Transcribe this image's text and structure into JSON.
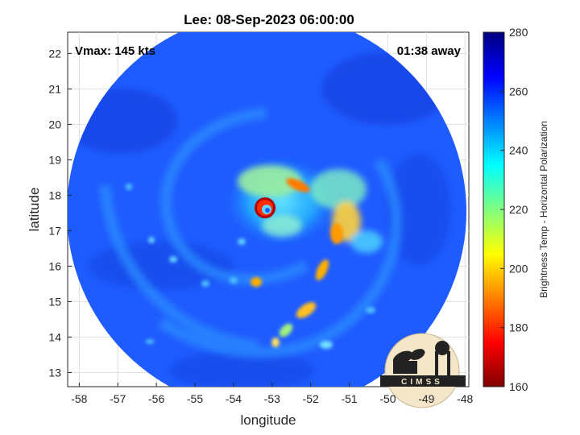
{
  "title": "Lee: 08-Sep-2023 06:00:00",
  "vmax_text": "Vmax: 145 kts",
  "time_offset_text": "01:38 away",
  "xlabel": "longitude",
  "ylabel": "latitude",
  "colorbar_label": "Brightness Temp - Horizontal Polarization",
  "logo_text": "CIMSS",
  "x_ticks": [
    "-58",
    "-57",
    "-56",
    "-55",
    "-54",
    "-53",
    "-52",
    "-51",
    "-50",
    "-49",
    "-48"
  ],
  "y_ticks": [
    "22",
    "21",
    "20",
    "19",
    "18",
    "17",
    "16",
    "15",
    "14",
    "13"
  ],
  "colorbar_ticks": [
    "280",
    "260",
    "240",
    "220",
    "200",
    "180",
    "160"
  ],
  "chart_data": {
    "type": "heatmap",
    "title": "Lee: 08-Sep-2023 06:00:00",
    "xlabel": "longitude",
    "ylabel": "latitude",
    "xlim": [
      -58.3,
      -47.9
    ],
    "ylim": [
      12.6,
      22.6
    ],
    "clim": [
      160,
      280
    ],
    "colormap": "jet",
    "colorbar_label": "Brightness Temp - Horizontal Polarization",
    "background_value_approx": 258,
    "eye_center": {
      "lon": -53.1,
      "lat": 17.6
    },
    "eye_value_approx": 255,
    "eyewall_value_approx": 165,
    "grid": true
  }
}
